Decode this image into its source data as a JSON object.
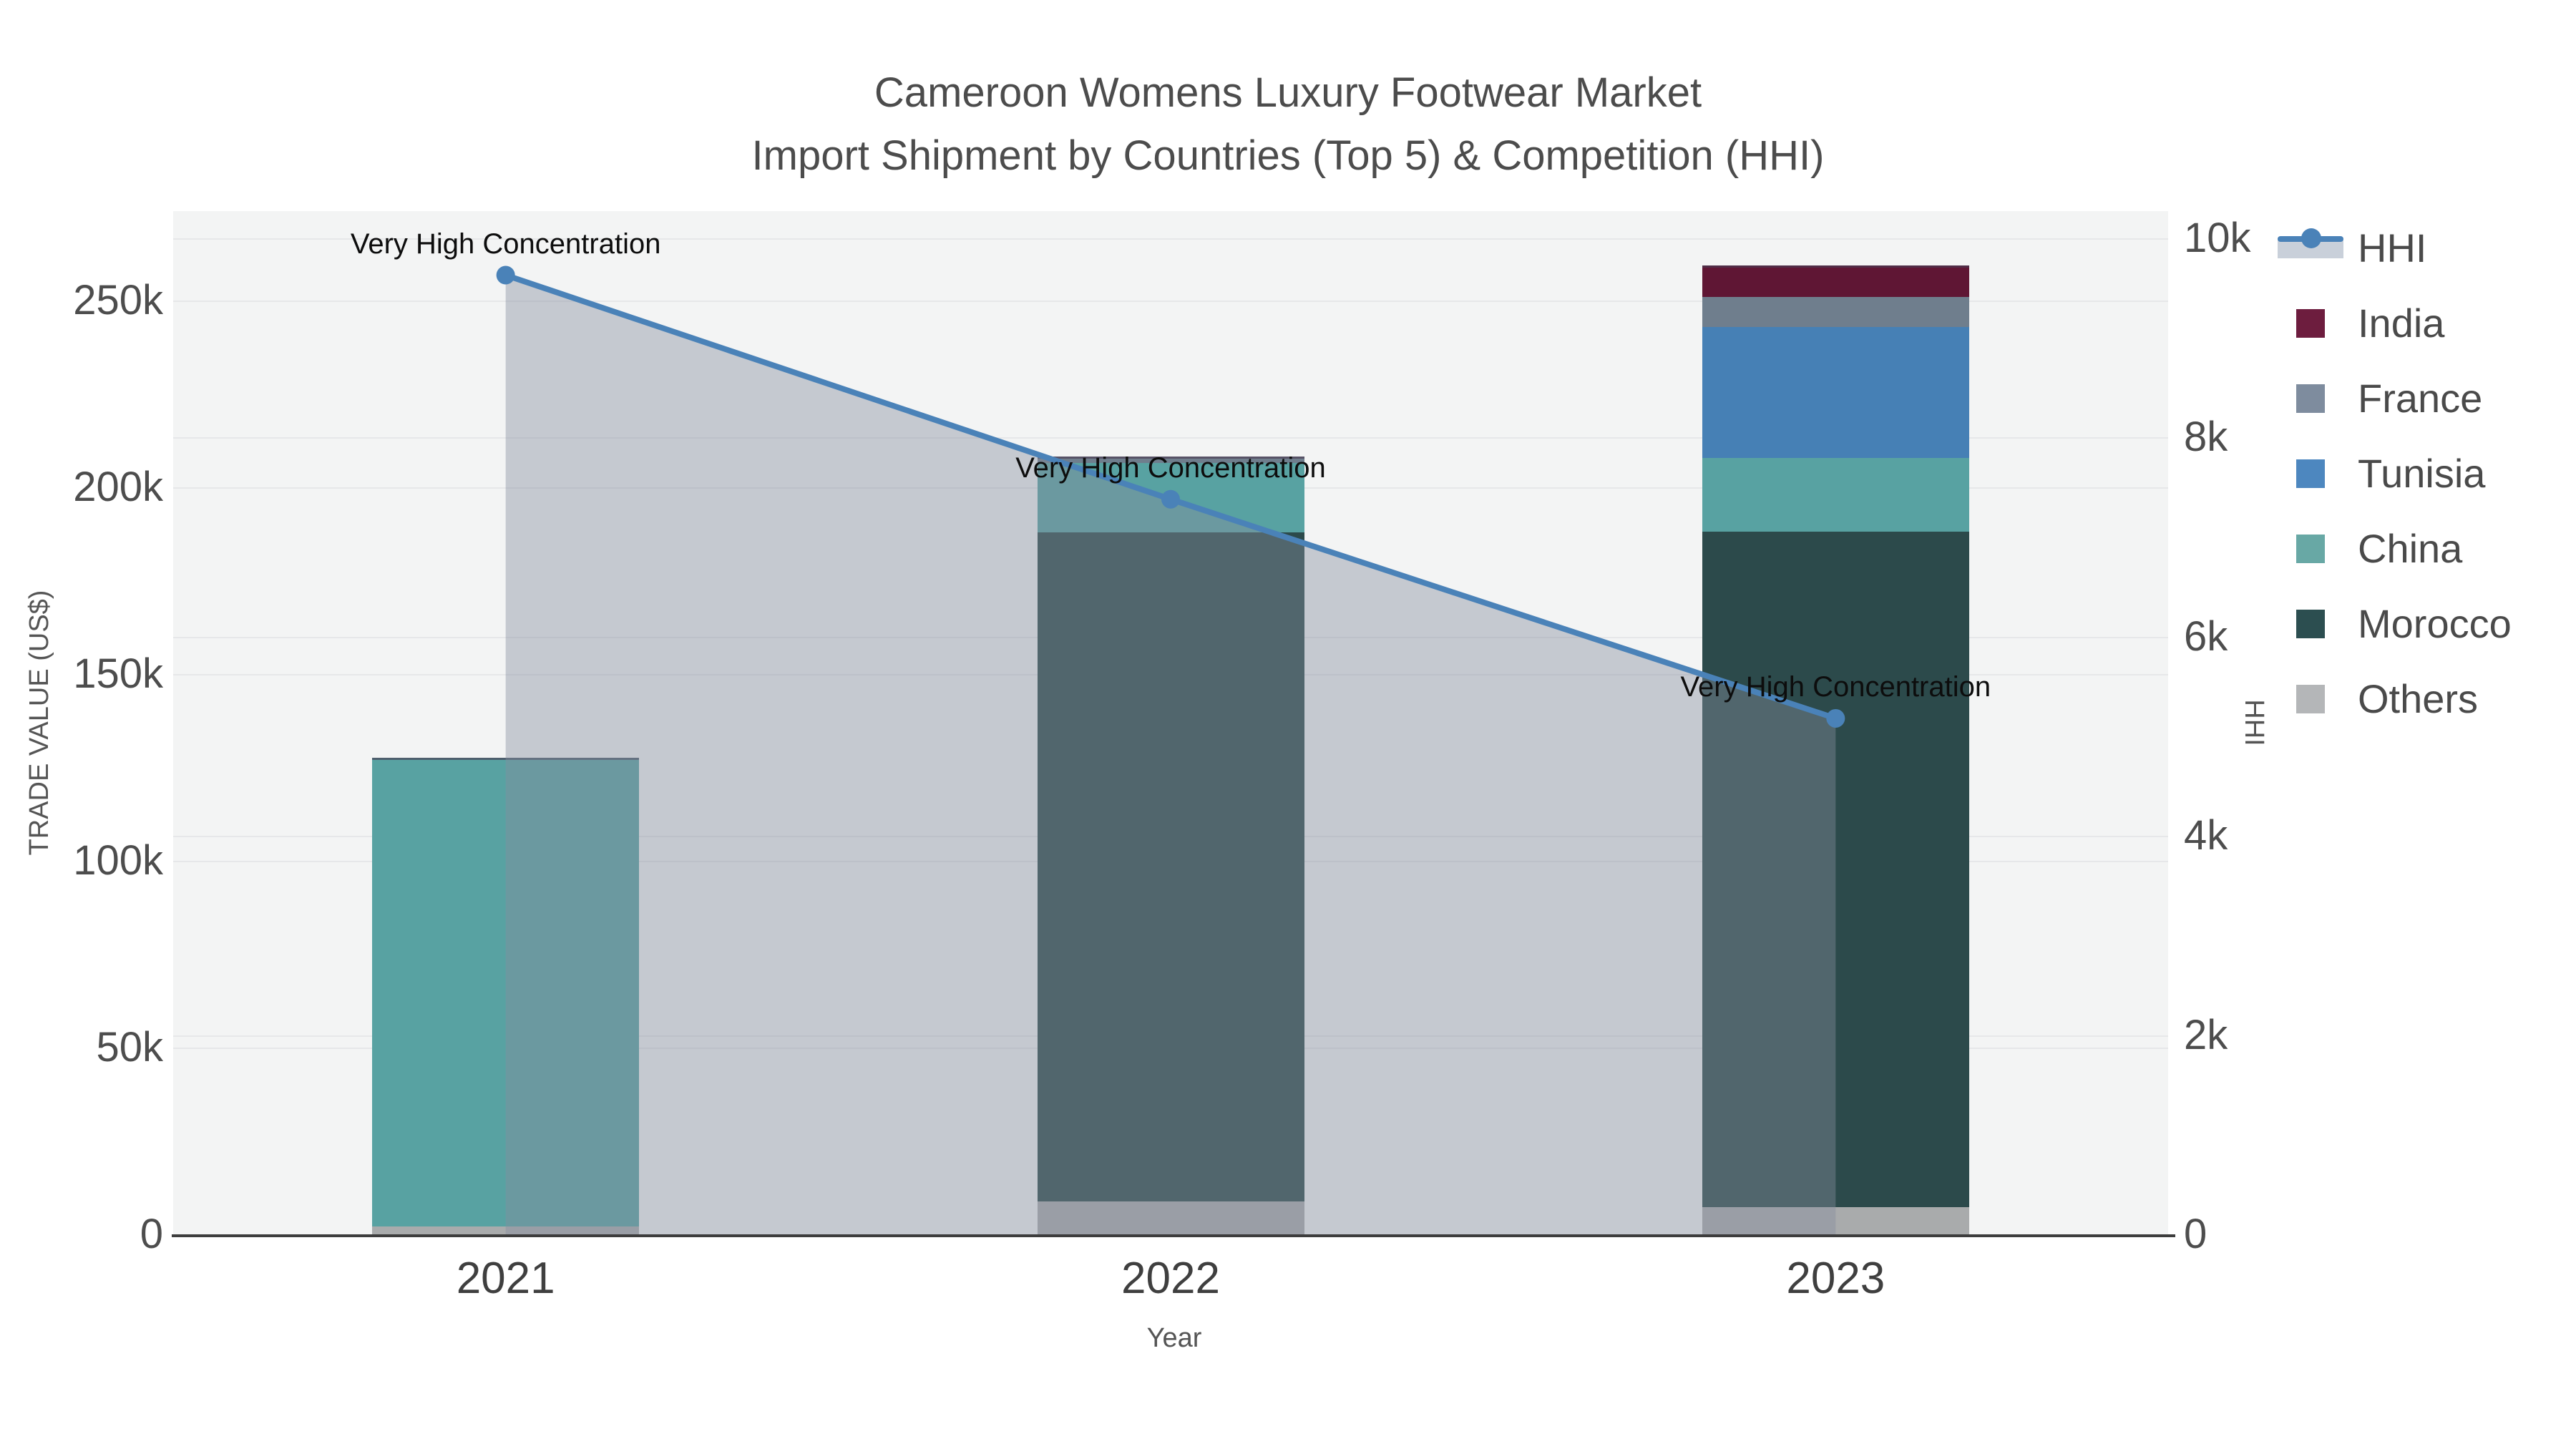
{
  "title": {
    "line1": "Cameroon Womens Luxury Footwear Market",
    "line2": "Import Shipment by Countries (Top 5) & Competition (HHI)"
  },
  "axis_titles": {
    "x": "Year",
    "y_left": "TRADE VALUE (US$)",
    "y_right": "HHI"
  },
  "legend": {
    "items": [
      {
        "label": "HHI",
        "type": "line",
        "color": "#4a82b8",
        "band": "#c9d0da"
      },
      {
        "label": "India",
        "type": "box",
        "color": "#6d1d3e"
      },
      {
        "label": "France",
        "type": "box",
        "color": "#7e8c9e"
      },
      {
        "label": "Tunisia",
        "type": "box",
        "color": "#4d87bf"
      },
      {
        "label": "China",
        "type": "box",
        "color": "#68a8a5"
      },
      {
        "label": "Morocco",
        "type": "box",
        "color": "#2c4e50"
      },
      {
        "label": "Others",
        "type": "box",
        "color": "#b4b6b8"
      }
    ]
  },
  "chart_data": {
    "type": "bar",
    "subtype": "stacked-bars-with-line",
    "title": "Cameroon Womens Luxury Footwear Market — Import Shipment by Countries (Top 5) & Competition (HHI)",
    "categories": [
      "2021",
      "2022",
      "2023"
    ],
    "series": [
      {
        "name": "India",
        "type": "bar",
        "axis": "left",
        "color": "#5f1634",
        "values": [
          0,
          0,
          8400
        ]
      },
      {
        "name": "France",
        "type": "bar",
        "axis": "left",
        "color": "#6f7e8d",
        "values": [
          0,
          1700,
          8000
        ]
      },
      {
        "name": "Tunisia",
        "type": "bar",
        "axis": "left",
        "color": "#4680b5",
        "values": [
          0,
          0,
          35100
        ]
      },
      {
        "name": "China",
        "type": "bar",
        "axis": "left",
        "color": "#58a2a2",
        "values": [
          125500,
          18600,
          19700
        ]
      },
      {
        "name": "Morocco",
        "type": "bar",
        "axis": "left",
        "color": "#2c4a4b",
        "values": [
          0,
          179100,
          180800
        ]
      },
      {
        "name": "Others",
        "type": "bar",
        "axis": "left",
        "color": "#a9abac",
        "values": [
          2100,
          8800,
          7300
        ]
      },
      {
        "name": "HHI",
        "type": "line-area",
        "axis": "right",
        "color": "#4a82b8",
        "area_fill": "rgba(134,140,158,0.42)",
        "values": [
          9630,
          7380,
          5180
        ]
      }
    ],
    "bar_totals": [
      127600,
      208200,
      259300
    ],
    "annotations": [
      {
        "text": "Very High Concentration",
        "category": "2021",
        "hhi": 9630
      },
      {
        "text": "Very High Concentration",
        "category": "2022",
        "hhi": 7380
      },
      {
        "text": "Very High Concentration",
        "category": "2023",
        "hhi": 5180
      }
    ],
    "x_ticks": [
      "2021",
      "2022",
      "2023"
    ],
    "y_left": {
      "label": "TRADE VALUE (US$)",
      "range": [
        0,
        273000
      ],
      "ticks": [
        {
          "label": "0",
          "value": 0
        },
        {
          "label": "50k",
          "value": 50000
        },
        {
          "label": "100k",
          "value": 100000
        },
        {
          "label": "150k",
          "value": 150000
        },
        {
          "label": "200k",
          "value": 200000
        },
        {
          "label": "250k",
          "value": 250000
        }
      ]
    },
    "y_right": {
      "label": "HHI",
      "range": [
        0,
        10300
      ],
      "ticks": [
        {
          "label": "0",
          "value": 0
        },
        {
          "label": "2k",
          "value": 2000
        },
        {
          "label": "4k",
          "value": 4000
        },
        {
          "label": "6k",
          "value": 6000
        },
        {
          "label": "8k",
          "value": 8000
        },
        {
          "label": "10k",
          "value": 10000
        }
      ]
    },
    "legend_position": "right",
    "grid": true,
    "plot_background": "#f3f4f4"
  }
}
